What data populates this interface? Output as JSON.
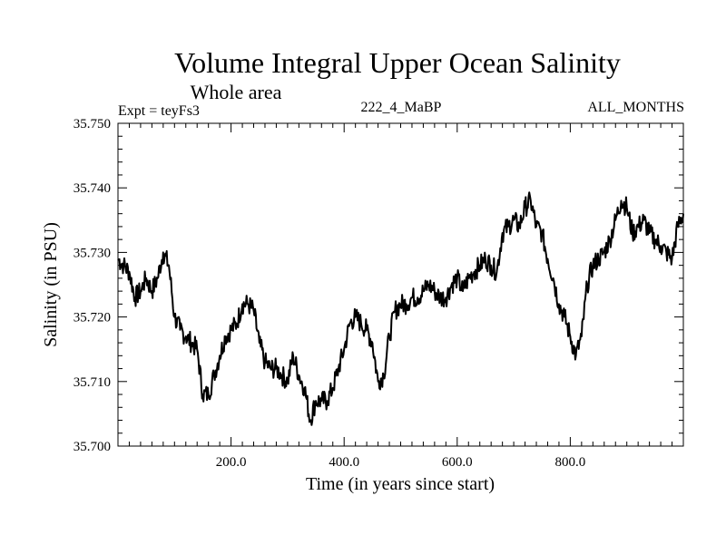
{
  "chart_data": {
    "type": "line",
    "title": "Volume Integral Upper Ocean Salinity",
    "subtitle": "Whole area",
    "experiment_label": "Expt = teyFs3",
    "run_label": "222_4_MaBP",
    "months_label": "ALL_MONTHS",
    "xlabel": "Time (in years since start)",
    "ylabel": "Salinity (in PSU)",
    "xlim": [
      0,
      1000
    ],
    "ylim": [
      35.7,
      35.75
    ],
    "x_ticks": [
      200,
      400,
      600,
      800
    ],
    "x_tick_labels": [
      "200.0",
      "400.0",
      "600.0",
      "800.0"
    ],
    "y_ticks": [
      35.7,
      35.71,
      35.72,
      35.73,
      35.74,
      35.75
    ],
    "y_tick_labels": [
      "35.700",
      "35.710",
      "35.720",
      "35.730",
      "35.740",
      "35.750"
    ],
    "grid": false,
    "series": [
      {
        "name": "Salinity",
        "x": [
          0,
          10,
          20,
          30,
          40,
          50,
          60,
          70,
          80,
          90,
          100,
          110,
          120,
          130,
          140,
          150,
          160,
          170,
          180,
          190,
          200,
          210,
          220,
          230,
          240,
          250,
          260,
          270,
          280,
          290,
          300,
          310,
          320,
          330,
          340,
          350,
          360,
          370,
          380,
          390,
          400,
          410,
          420,
          430,
          440,
          450,
          460,
          470,
          480,
          490,
          500,
          510,
          520,
          530,
          540,
          550,
          560,
          570,
          580,
          590,
          600,
          610,
          620,
          630,
          640,
          650,
          660,
          670,
          680,
          690,
          700,
          710,
          720,
          730,
          740,
          750,
          760,
          770,
          780,
          790,
          800,
          810,
          820,
          830,
          840,
          850,
          860,
          870,
          880,
          890,
          900,
          910,
          920,
          930,
          940,
          950,
          960,
          970,
          980,
          990,
          1000
        ],
        "values": [
          35.729,
          35.728,
          35.727,
          35.723,
          35.724,
          35.726,
          35.724,
          35.726,
          35.73,
          35.728,
          35.72,
          35.718,
          35.717,
          35.716,
          35.715,
          35.708,
          35.708,
          35.711,
          35.714,
          35.717,
          35.718,
          35.719,
          35.722,
          35.722,
          35.721,
          35.716,
          35.713,
          35.712,
          35.712,
          35.711,
          35.71,
          35.714,
          35.711,
          35.709,
          35.704,
          35.707,
          35.707,
          35.707,
          35.709,
          35.712,
          35.715,
          35.719,
          35.72,
          35.719,
          35.718,
          35.716,
          35.71,
          35.711,
          35.717,
          35.721,
          35.722,
          35.722,
          35.723,
          35.723,
          35.724,
          35.725,
          35.724,
          35.723,
          35.723,
          35.725,
          35.726,
          35.724,
          35.726,
          35.727,
          35.728,
          35.729,
          35.728,
          35.727,
          35.733,
          35.734,
          35.735,
          35.734,
          35.737,
          35.738,
          35.734,
          35.733,
          35.729,
          35.726,
          35.722,
          35.72,
          35.717,
          35.714,
          35.717,
          35.725,
          35.728,
          35.729,
          35.73,
          35.732,
          35.735,
          35.738,
          35.737,
          35.733,
          35.734,
          35.735,
          35.733,
          35.732,
          35.731,
          35.73,
          35.729,
          35.734,
          35.736
        ]
      }
    ]
  }
}
